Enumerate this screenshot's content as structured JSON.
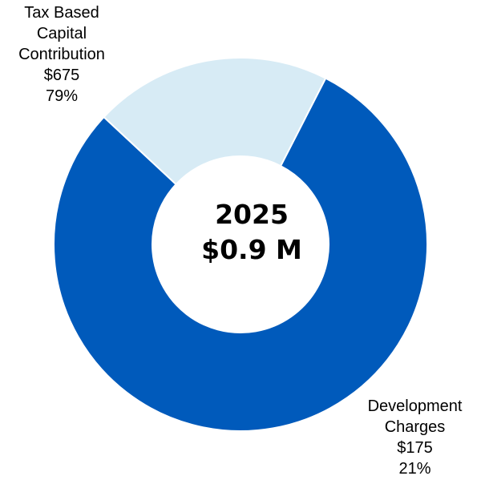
{
  "chart_data": {
    "type": "pie",
    "donut": true,
    "center": {
      "year": "2025",
      "total": "$0.9 M"
    },
    "slices": [
      {
        "label_lines": [
          "Tax Based",
          "Capital",
          "Contribution"
        ],
        "value": 675,
        "value_text": "$675",
        "percent": 79,
        "percent_text": "79%",
        "color": "#005ABB"
      },
      {
        "label_lines": [
          "Development",
          "Charges"
        ],
        "value": 175,
        "value_text": "$175",
        "percent": 21,
        "percent_text": "21%",
        "color": "#D7EBF5"
      }
    ],
    "start_angle_deg": 137,
    "direction": "counterclockwise"
  }
}
